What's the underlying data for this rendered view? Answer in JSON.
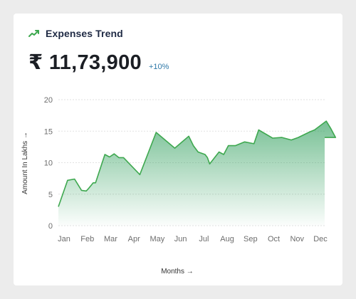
{
  "widget": {
    "title": "Expenses Trend",
    "icon": "trend-up-icon",
    "amount": "₹ 11,73,900",
    "change": "+10%",
    "colors": {
      "line": "#3ea84f",
      "fill": "#2e9e5b",
      "change": "#2f79a8"
    }
  },
  "chart_data": {
    "type": "area",
    "title": "",
    "xlabel": "Months →",
    "ylabel": "Amount In Lakhs →",
    "ylim": [
      0,
      20
    ],
    "yticks": [
      0,
      5,
      10,
      15,
      20
    ],
    "categories": [
      "Jan",
      "Feb",
      "Mar",
      "Apr",
      "May",
      "Jun",
      "Jul",
      "Aug",
      "Sep",
      "Oct",
      "Nov",
      "Dec"
    ],
    "grid": true,
    "series": [
      {
        "x": [
          0,
          0.4,
          0.7,
          1.0,
          1.2,
          1.3,
          1.5,
          1.6,
          2.0,
          2.2,
          2.4,
          2.6,
          2.8,
          3.5,
          4.2,
          5.0,
          5.6,
          5.8,
          6.0,
          6.3,
          6.4,
          6.5,
          6.9,
          7.1,
          7.3,
          7.6,
          8.0,
          8.4,
          8.6,
          9.2,
          9.6,
          10.0,
          10.3,
          10.8,
          11.0,
          11.5,
          11.7,
          11.9,
          12.0
        ],
        "y": [
          3.0,
          7.2,
          7.4,
          5.6,
          5.5,
          5.9,
          6.8,
          6.8,
          11.3,
          10.9,
          11.4,
          10.8,
          10.8,
          8.1,
          14.8,
          12.3,
          14.2,
          12.7,
          11.7,
          11.3,
          10.8,
          9.8,
          11.7,
          11.3,
          12.7,
          12.7,
          13.3,
          13.0,
          15.2,
          13.9,
          14.0,
          13.6,
          14.0,
          14.9,
          15.2,
          16.6,
          15.4,
          14.0,
          14.0
        ]
      }
    ]
  }
}
